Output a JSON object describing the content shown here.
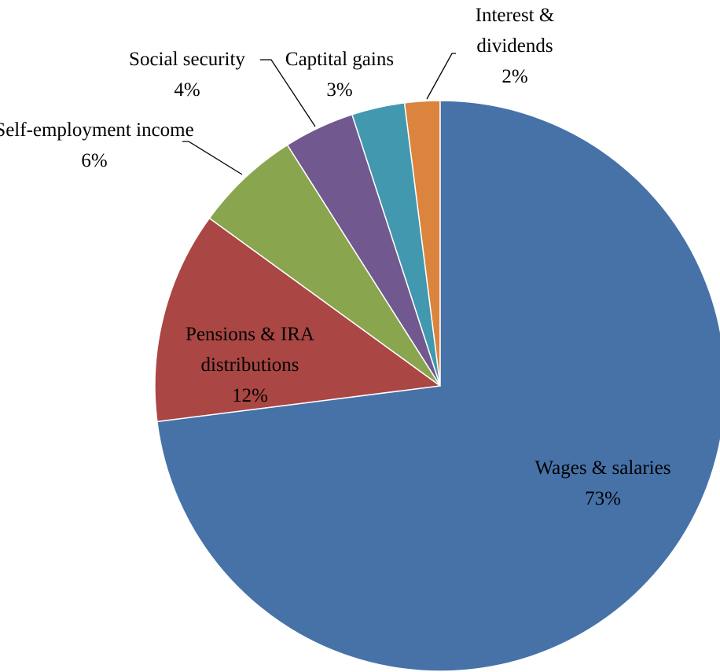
{
  "chart_data": {
    "type": "pie",
    "categories": [
      "Wages & salaries",
      "Pensions & IRA distributions",
      "Self-employment income",
      "Social security",
      "Captital gains",
      "Interest & dividends"
    ],
    "values": [
      73,
      12,
      6,
      4,
      3,
      2
    ],
    "value_labels": [
      "73%",
      "12%",
      "6%",
      "4%",
      "3%",
      "2%"
    ],
    "colors": [
      "#4672a8",
      "#aa4643",
      "#89a54e",
      "#71588f",
      "#4198af",
      "#db843d"
    ]
  }
}
